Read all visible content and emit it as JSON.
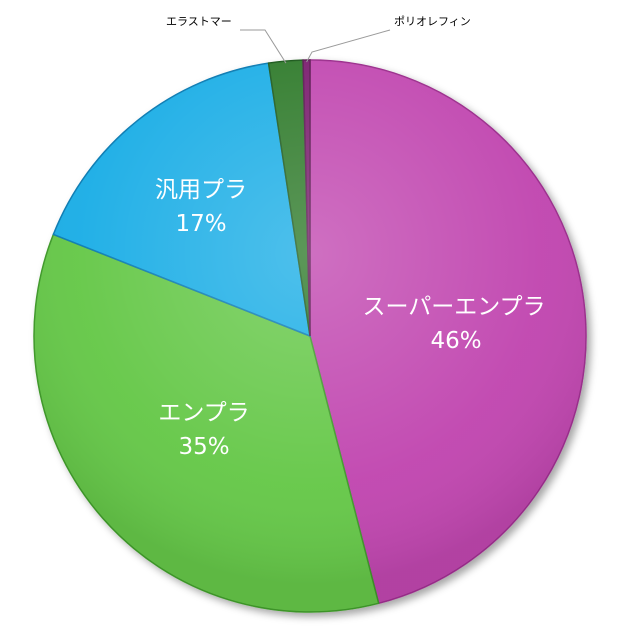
{
  "chart_data": {
    "type": "pie",
    "title": "",
    "slices": [
      {
        "label": "スーパーエンプラ",
        "value": 46,
        "percent_label": "46%",
        "color": "#c147b0",
        "shade": "#9c2f8d"
      },
      {
        "label": "エンプラ",
        "value": 35,
        "percent_label": "35%",
        "color": "#66c84a",
        "shade": "#3f9a2a"
      },
      {
        "label": "汎用プラ",
        "value": 16.6,
        "percent_label": "17%",
        "color": "#1aaee6",
        "shade": "#0a7cb3"
      },
      {
        "label": "エラストマー",
        "value": 2,
        "percent_label": "",
        "color": "#2f7a2c",
        "shade": "#1f5a1c"
      },
      {
        "label": "ポリオレフィン",
        "value": 0.4,
        "percent_label": "",
        "color": "#7a1f6e",
        "shade": "#5a1450"
      }
    ],
    "legend": "none"
  }
}
